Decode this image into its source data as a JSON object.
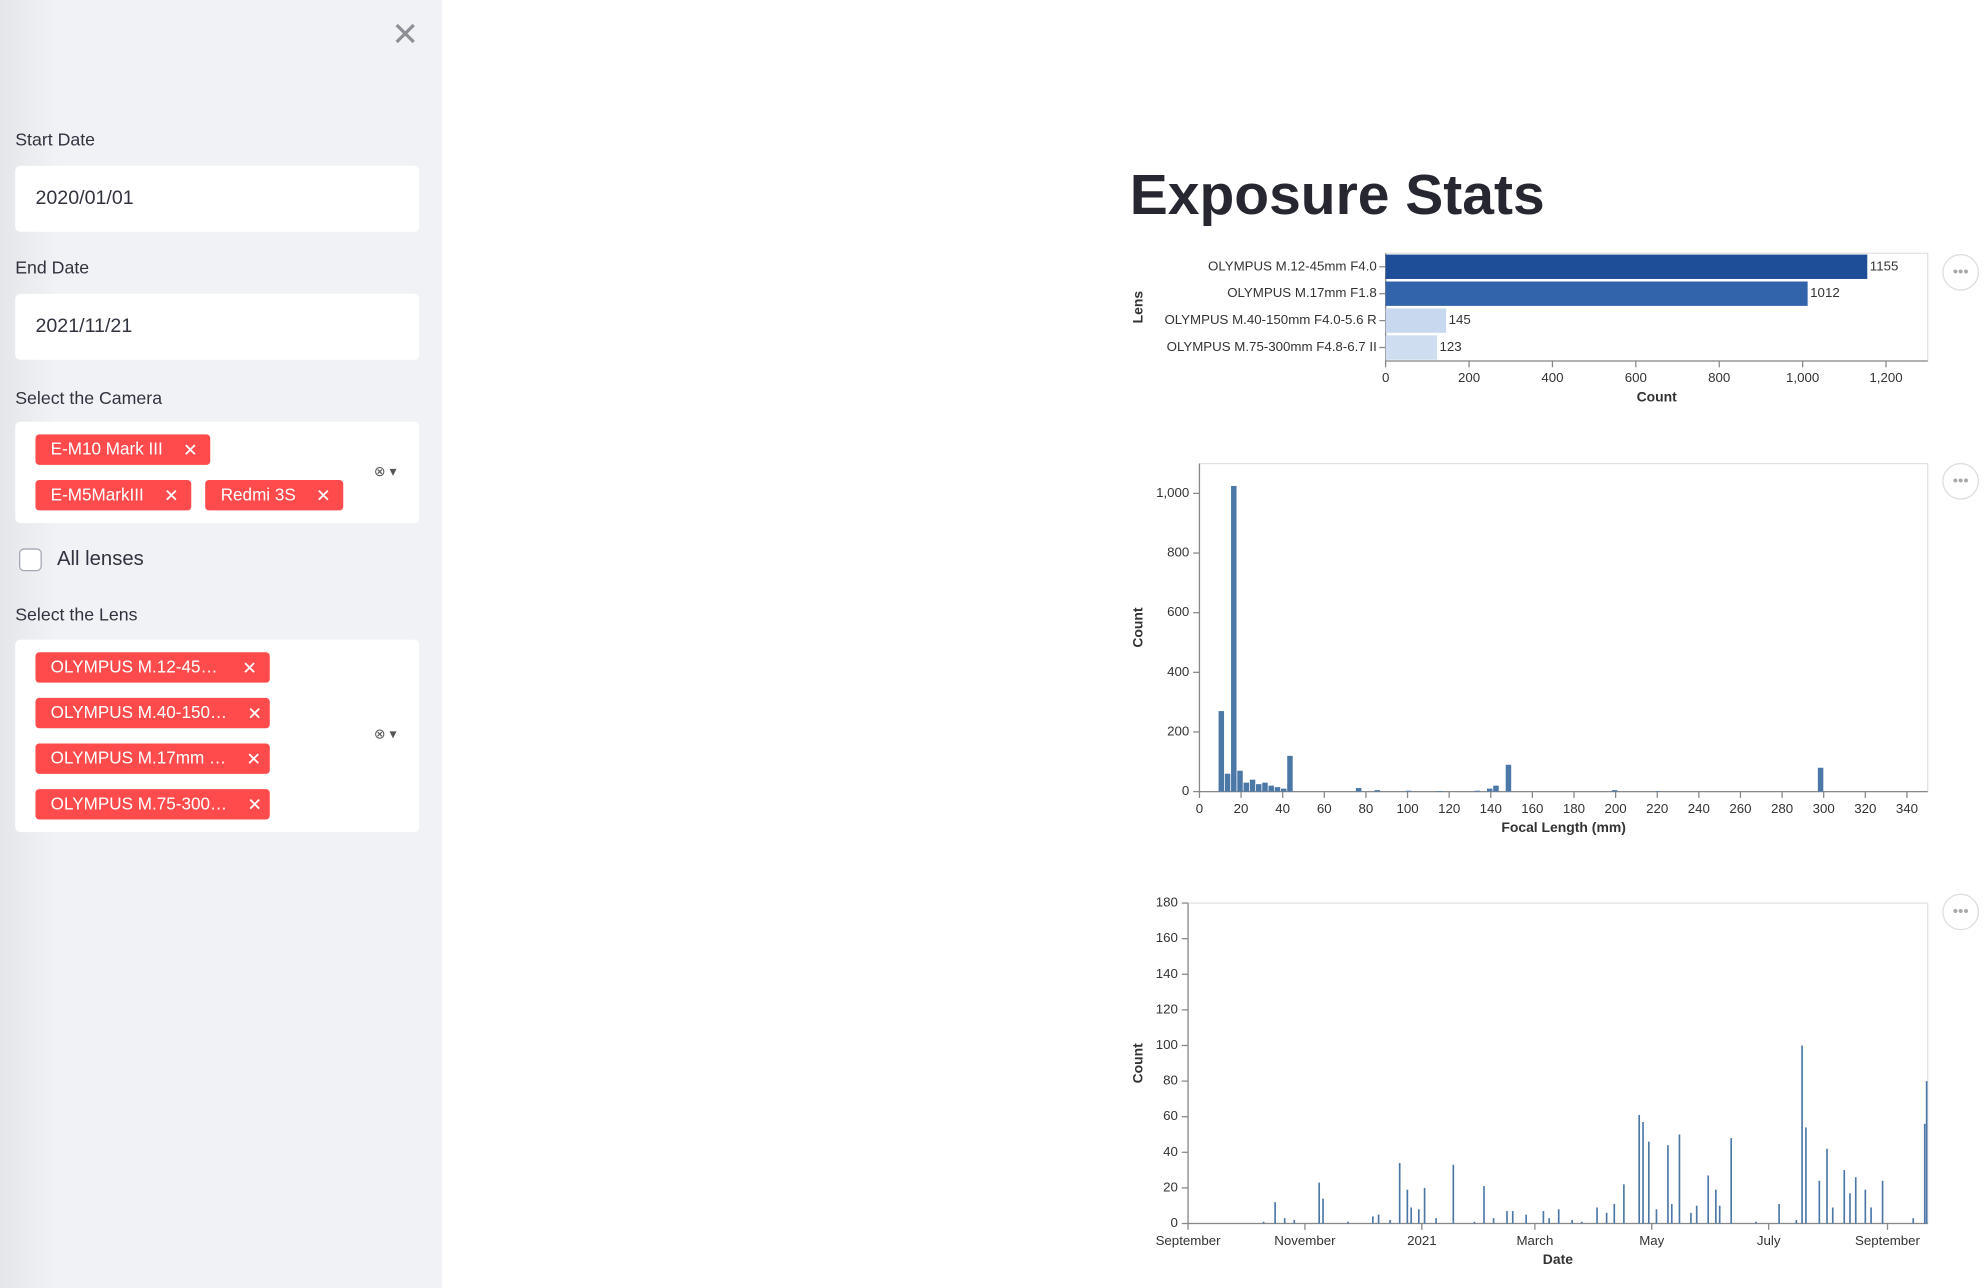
{
  "sidebar": {
    "start_date_label": "Start Date",
    "start_date": "2020/01/01",
    "end_date_label": "End Date",
    "end_date": "2021/11/21",
    "camera_label": "Select the Camera",
    "cameras": [
      "E-M10 Mark III",
      "E-M5MarkIII",
      "Redmi 3S"
    ],
    "all_lenses": "All lenses",
    "lens_label": "Select the Lens",
    "lenses": [
      "OLYMPUS M.12-45…",
      "OLYMPUS M.40-150…",
      "OLYMPUS M.17mm …",
      "OLYMPUS M.75-300…"
    ]
  },
  "title": "Exposure Stats",
  "chart_data": [
    {
      "type": "hbar",
      "categories": [
        "OLYMPUS M.12-45mm F4.0",
        "OLYMPUS M.17mm F1.8",
        "OLYMPUS M.40-150mm F4.0-5.6 R",
        "OLYMPUS M.75-300mm F4.8-6.7 II"
      ],
      "values": [
        1155,
        1012,
        145,
        123
      ],
      "colors": [
        "#1f4e98",
        "#3264ab",
        "#c8d8ee",
        "#cfddf0"
      ],
      "x_label": "Count",
      "y_label": "Lens",
      "xlim": [
        0,
        1300
      ],
      "xticks": [
        0,
        200,
        400,
        600,
        800,
        {
          "value": 1000,
          "label": "1,000"
        },
        {
          "value": 1200,
          "label": "1,200"
        }
      ],
      "grid": false
    },
    {
      "type": "histogram",
      "bins": [
        9,
        12,
        15,
        18,
        21,
        24,
        27,
        30,
        33,
        36,
        39,
        42,
        45,
        48,
        51,
        54,
        57,
        60,
        63,
        66,
        69,
        72,
        75,
        78,
        81,
        84,
        87,
        90,
        93,
        96,
        99,
        102,
        105,
        108,
        111,
        114,
        117,
        120,
        123,
        126,
        129,
        132,
        135,
        138,
        141,
        144,
        147,
        150,
        153,
        156,
        159,
        162,
        165,
        168,
        171,
        174,
        177,
        180,
        183,
        186,
        189,
        192,
        195,
        198,
        201,
        204,
        207,
        210,
        213,
        216,
        219,
        222,
        225,
        228,
        231,
        234,
        237,
        240,
        243,
        246,
        249,
        252,
        255,
        258,
        261,
        264,
        267,
        270,
        273,
        276,
        279,
        282,
        285,
        288,
        291,
        294,
        297,
        300,
        303
      ],
      "values": [
        270,
        60,
        1025,
        70,
        30,
        40,
        25,
        30,
        20,
        15,
        10,
        120,
        0,
        0,
        0,
        0,
        0,
        0,
        0,
        0,
        0,
        0,
        12,
        0,
        0,
        5,
        0,
        0,
        0,
        0,
        3,
        0,
        0,
        0,
        0,
        2,
        0,
        0,
        0,
        0,
        0,
        3,
        0,
        10,
        20,
        0,
        90,
        0,
        0,
        0,
        0,
        0,
        0,
        0,
        0,
        0,
        0,
        0,
        0,
        0,
        0,
        0,
        0,
        5,
        0,
        0,
        0,
        0,
        0,
        0,
        2,
        0,
        0,
        0,
        0,
        0,
        0,
        0,
        0,
        0,
        0,
        0,
        0,
        0,
        0,
        0,
        0,
        0,
        0,
        0,
        0,
        0,
        0,
        0,
        0,
        0,
        80,
        0
      ],
      "color": "#4c78a8",
      "x_label": "Focal Length (mm)",
      "y_label": "Count",
      "xlim": [
        0,
        350
      ],
      "xticks": [
        0,
        20,
        40,
        60,
        80,
        100,
        120,
        140,
        160,
        180,
        200,
        220,
        240,
        260,
        280,
        300,
        320,
        340
      ],
      "ylim": [
        0,
        1100
      ],
      "yticks": [
        0,
        200,
        400,
        600,
        800,
        {
          "value": 1000,
          "label": "1,000"
        }
      ],
      "grid": false
    },
    {
      "type": "bar",
      "x": [
        "2020-10-10",
        "2020-10-16",
        "2020-10-21",
        "2020-10-26",
        "2020-11-08",
        "2020-11-10",
        "2020-11-23",
        "2020-12-06",
        "2020-12-09",
        "2020-12-15",
        "2020-12-20",
        "2020-12-24",
        "2020-12-26",
        "2020-12-30",
        "2021-01-02",
        "2021-01-08",
        "2021-01-17",
        "2021-01-28",
        "2021-02-02",
        "2021-02-07",
        "2021-02-14",
        "2021-02-17",
        "2021-02-24",
        "2021-03-05",
        "2021-03-08",
        "2021-03-13",
        "2021-03-20",
        "2021-03-25",
        "2021-04-02",
        "2021-04-07",
        "2021-04-11",
        "2021-04-16",
        "2021-04-24",
        "2021-04-26",
        "2021-04-29",
        "2021-05-03",
        "2021-05-09",
        "2021-05-11",
        "2021-05-15",
        "2021-05-21",
        "2021-05-24",
        "2021-05-30",
        "2021-06-03",
        "2021-06-05",
        "2021-06-11",
        "2021-06-24",
        "2021-07-06",
        "2021-07-15",
        "2021-07-18",
        "2021-07-20",
        "2021-07-27",
        "2021-07-31",
        "2021-08-03",
        "2021-08-09",
        "2021-08-12",
        "2021-08-15",
        "2021-08-20",
        "2021-08-23",
        "2021-08-29",
        "2021-09-14",
        "2021-09-20",
        "2021-09-21"
      ],
      "values": [
        1,
        12,
        3,
        2,
        23,
        14,
        1,
        4,
        5,
        2,
        34,
        19,
        9,
        8,
        20,
        3,
        33,
        1,
        21,
        3,
        7,
        7,
        5,
        7,
        3,
        8,
        2,
        1,
        9,
        6,
        11,
        22,
        61,
        57,
        46,
        8,
        44,
        11,
        50,
        6,
        10,
        27,
        19,
        10,
        48,
        1,
        11,
        2,
        100,
        54,
        24,
        42,
        9,
        30,
        17,
        26,
        19,
        9,
        24,
        3,
        56,
        80
      ],
      "color": "#4c78a8",
      "x_label": "Date",
      "y_label": "Count",
      "xlim": [
        "2020-09-01",
        "2021-09-22"
      ],
      "xticks": [
        {
          "value": "2020-09-01",
          "label": "September"
        },
        {
          "value": "2020-11-01",
          "label": "November"
        },
        {
          "value": "2021-01-01",
          "label": "2021"
        },
        {
          "value": "2021-03-01",
          "label": "March"
        },
        {
          "value": "2021-05-01",
          "label": "May"
        },
        {
          "value": "2021-07-01",
          "label": "July"
        },
        {
          "value": "2021-09-01",
          "label": "September"
        }
      ],
      "ylim": [
        0,
        180
      ],
      "yticks": [
        0,
        20,
        40,
        60,
        80,
        100,
        120,
        140,
        160,
        180
      ],
      "grid": false
    }
  ]
}
